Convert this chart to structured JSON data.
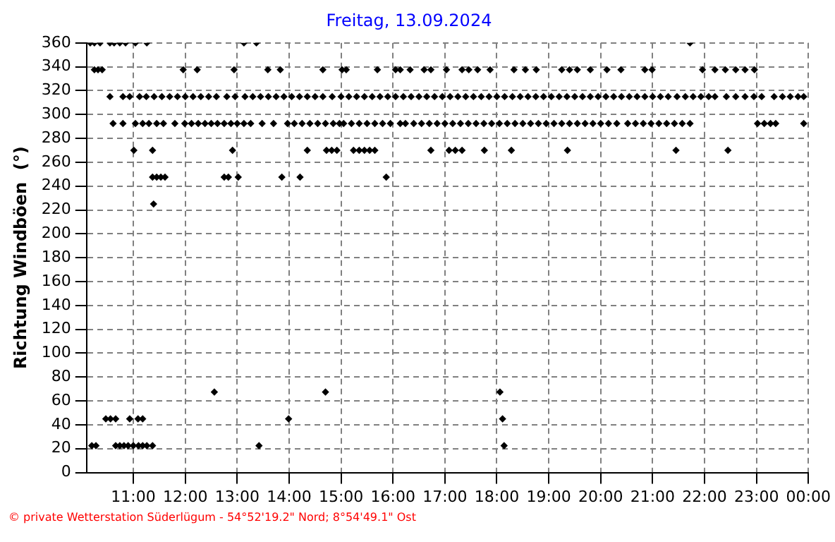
{
  "chart_data": {
    "type": "scatter",
    "title": "Freitag, 13.09.2024",
    "ylabel": "Richtung Windböen  (°)",
    "annotations": [
      "© private Wetterstation Süderlügum - 54°52'19.2\" Nord; 8°54'49.1\" Ost"
    ],
    "xlim": [
      10.1,
      24
    ],
    "xticks": [
      {
        "value": 11,
        "label": "11:00"
      },
      {
        "value": 12,
        "label": "12:00"
      },
      {
        "value": 13,
        "label": "13:00"
      },
      {
        "value": 14,
        "label": "14:00"
      },
      {
        "value": 15,
        "label": "15:00"
      },
      {
        "value": 16,
        "label": "16:00"
      },
      {
        "value": 17,
        "label": "17:00"
      },
      {
        "value": 18,
        "label": "18:00"
      },
      {
        "value": 19,
        "label": "19:00"
      },
      {
        "value": 20,
        "label": "20:00"
      },
      {
        "value": 21,
        "label": "21:00"
      },
      {
        "value": 22,
        "label": "22:00"
      },
      {
        "value": 23,
        "label": "23:00"
      },
      {
        "value": 24,
        "label": "00:00"
      }
    ],
    "ylim": [
      0,
      360
    ],
    "yticks": [
      0,
      20,
      40,
      60,
      80,
      100,
      120,
      140,
      160,
      180,
      200,
      220,
      240,
      260,
      280,
      300,
      320,
      340,
      360
    ],
    "grid": true,
    "marker": "diamond",
    "legend": false,
    "series": [
      {
        "color": "#000000",
        "x": [
          10.17,
          10.25,
          10.36,
          10.55,
          10.63,
          10.74,
          10.85,
          11.04,
          11.26,
          13.13,
          13.37,
          21.72
        ],
        "values": [
          360,
          360,
          360,
          360,
          360,
          360,
          360,
          360,
          360,
          360,
          360,
          360
        ]
      },
      {
        "color": "#000000",
        "x": [
          10.25,
          10.32,
          10.4,
          11.96,
          12.23,
          12.94,
          13.59,
          13.83,
          14.65,
          15.02,
          15.1,
          15.7,
          16.05,
          16.14,
          16.33,
          16.6,
          16.73,
          17.03,
          17.33,
          17.46,
          17.63,
          17.87,
          18.33,
          18.55,
          18.76,
          19.25,
          19.4,
          19.55,
          19.8,
          20.12,
          20.39,
          20.85,
          20.99,
          21.96,
          22.2,
          22.4,
          22.6,
          22.78,
          22.96
        ],
        "values": [
          337.5,
          337.5,
          337.5,
          337.5,
          337.5,
          337.5,
          337.5,
          337.5,
          337.5,
          337.5,
          337.5,
          337.5,
          337.5,
          337.5,
          337.5,
          337.5,
          337.5,
          337.5,
          337.5,
          337.5,
          337.5,
          337.5,
          337.5,
          337.5,
          337.5,
          337.5,
          337.5,
          337.5,
          337.5,
          337.5,
          337.5,
          337.5,
          337.5,
          337.5,
          337.5,
          337.5,
          337.5,
          337.5,
          337.5
        ]
      },
      {
        "color": "#000000",
        "x": [
          10.55,
          10.8,
          10.93,
          11.12,
          11.25,
          11.4,
          11.55,
          11.7,
          11.85,
          12.0,
          12.15,
          12.3,
          12.45,
          12.6,
          12.8,
          12.96,
          13.15,
          13.3,
          13.45,
          13.6,
          13.75,
          13.9,
          14.05,
          14.2,
          14.35,
          14.5,
          14.65,
          14.83,
          15.0,
          15.15,
          15.3,
          15.45,
          15.6,
          15.75,
          15.9,
          16.05,
          16.2,
          16.35,
          16.5,
          16.65,
          16.8,
          16.95,
          17.1,
          17.25,
          17.4,
          17.55,
          17.7,
          17.85,
          18.0,
          18.15,
          18.3,
          18.45,
          18.6,
          18.75,
          18.9,
          19.05,
          19.2,
          19.35,
          19.5,
          19.65,
          19.8,
          19.95,
          20.1,
          20.25,
          20.4,
          20.55,
          20.7,
          20.85,
          21.0,
          21.15,
          21.3,
          21.47,
          21.63,
          21.78,
          21.93,
          22.08,
          22.2,
          22.42,
          22.6,
          22.78,
          22.95,
          23.1,
          23.34,
          23.5,
          23.65,
          23.8,
          23.91
        ],
        "values": [
          315,
          315,
          315,
          315,
          315,
          315,
          315,
          315,
          315,
          315,
          315,
          315,
          315,
          315,
          315,
          315,
          315,
          315,
          315,
          315,
          315,
          315,
          315,
          315,
          315,
          315,
          315,
          315,
          315,
          315,
          315,
          315,
          315,
          315,
          315,
          315,
          315,
          315,
          315,
          315,
          315,
          315,
          315,
          315,
          315,
          315,
          315,
          315,
          315,
          315,
          315,
          315,
          315,
          315,
          315,
          315,
          315,
          315,
          315,
          315,
          315,
          315,
          315,
          315,
          315,
          315,
          315,
          315,
          315,
          315,
          315,
          315,
          315,
          315,
          315,
          315,
          315,
          315,
          315,
          315,
          315,
          315,
          315,
          315,
          315,
          315,
          315
        ]
      },
      {
        "color": "#000000",
        "x": [
          10.61,
          10.8,
          11.04,
          11.18,
          11.3,
          11.45,
          11.58,
          11.8,
          11.99,
          12.12,
          12.25,
          12.38,
          12.5,
          12.62,
          12.75,
          12.88,
          13.0,
          13.13,
          13.26,
          13.48,
          13.7,
          13.97,
          14.1,
          14.25,
          14.4,
          14.55,
          14.7,
          14.85,
          14.97,
          15.05,
          15.2,
          15.35,
          15.5,
          15.65,
          15.8,
          15.95,
          16.14,
          16.24,
          16.4,
          16.55,
          16.7,
          16.85,
          17.0,
          17.15,
          17.3,
          17.45,
          17.6,
          17.75,
          17.9,
          18.05,
          18.2,
          18.35,
          18.5,
          18.65,
          18.8,
          18.95,
          19.1,
          19.25,
          19.4,
          19.55,
          19.7,
          19.85,
          20.0,
          20.15,
          20.31,
          20.52,
          20.67,
          20.82,
          20.97,
          21.12,
          21.27,
          21.42,
          21.57,
          21.72,
          23.02,
          23.15,
          23.27,
          23.37,
          23.91
        ],
        "values": [
          292.5,
          292.5,
          292.5,
          292.5,
          292.5,
          292.5,
          292.5,
          292.5,
          292.5,
          292.5,
          292.5,
          292.5,
          292.5,
          292.5,
          292.5,
          292.5,
          292.5,
          292.5,
          292.5,
          292.5,
          292.5,
          292.5,
          292.5,
          292.5,
          292.5,
          292.5,
          292.5,
          292.5,
          292.5,
          292.5,
          292.5,
          292.5,
          292.5,
          292.5,
          292.5,
          292.5,
          292.5,
          292.5,
          292.5,
          292.5,
          292.5,
          292.5,
          292.5,
          292.5,
          292.5,
          292.5,
          292.5,
          292.5,
          292.5,
          292.5,
          292.5,
          292.5,
          292.5,
          292.5,
          292.5,
          292.5,
          292.5,
          292.5,
          292.5,
          292.5,
          292.5,
          292.5,
          292.5,
          292.5,
          292.5,
          292.5,
          292.5,
          292.5,
          292.5,
          292.5,
          292.5,
          292.5,
          292.5,
          292.5,
          292.5,
          292.5,
          292.5,
          292.5,
          292.5
        ]
      },
      {
        "color": "#000000",
        "x": [
          11.01,
          11.37,
          12.91,
          14.35,
          14.72,
          14.82,
          14.92,
          15.24,
          15.35,
          15.45,
          15.55,
          15.65,
          16.73,
          17.08,
          17.2,
          17.33,
          17.76,
          18.28,
          19.36,
          21.45,
          22.45
        ],
        "values": [
          270,
          270,
          270,
          270,
          270,
          270,
          270,
          270,
          270,
          270,
          270,
          270,
          270,
          270,
          270,
          270,
          270,
          270,
          270,
          270,
          270
        ]
      },
      {
        "color": "#000000",
        "x": [
          11.37,
          11.45,
          11.53,
          11.61,
          12.75,
          12.83,
          13.02,
          13.86,
          14.21,
          15.87,
          11.39
        ],
        "values": [
          247.5,
          247.5,
          247.5,
          247.5,
          247.5,
          247.5,
          247.5,
          247.5,
          247.5,
          247.5,
          225
        ]
      },
      {
        "color": "#000000",
        "x": [
          12.56,
          14.7,
          18.06,
          10.47,
          10.56,
          10.66,
          10.93,
          11.09,
          11.18,
          13.99,
          18.11
        ],
        "values": [
          67.5,
          67.5,
          67.5,
          45,
          45,
          45,
          45,
          45,
          45,
          45,
          45
        ]
      },
      {
        "color": "#000000",
        "x": [
          10.2,
          10.28,
          10.66,
          10.74,
          10.82,
          10.9,
          11.0,
          11.1,
          11.18,
          11.26,
          11.37,
          13.42,
          18.14
        ],
        "values": [
          22.5,
          22.5,
          22.5,
          22.5,
          22.5,
          22.5,
          22.5,
          22.5,
          22.5,
          22.5,
          22.5,
          22.5,
          22.5
        ]
      }
    ]
  }
}
